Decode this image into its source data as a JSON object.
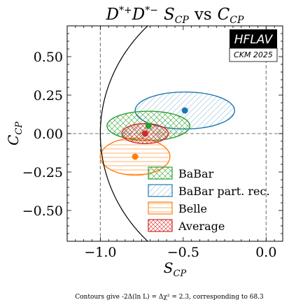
{
  "chart_data": {
    "type": "scatter",
    "title": "D*+D*− S_CP vs C_CP",
    "xlabel": "S_CP",
    "ylabel": "C_CP",
    "xlim": [
      -1.2,
      0.1
    ],
    "ylim": [
      -0.7,
      0.7
    ],
    "x_ticks": [
      -1.0,
      -0.5,
      0.0
    ],
    "x_tick_labels": [
      "−1.0",
      "−0.5",
      "0.0"
    ],
    "y_ticks": [
      -0.5,
      -0.25,
      0.0,
      0.25,
      0.5
    ],
    "y_tick_labels": [
      "−0.50",
      "−0.25",
      "0.00",
      "0.25",
      "0.50"
    ],
    "reference_lines": {
      "x": [
        -1.0,
        0.0
      ],
      "y": [
        0.0
      ]
    },
    "physical_boundary": "S^2 + C^2 = 1",
    "grid": false,
    "legend_position": "bottom-center",
    "series": [
      {
        "name": "BaBar",
        "color": "#2ca02c",
        "hatch": "diagonal-cross",
        "center": [
          -0.71,
          0.05
        ],
        "semi_axes": [
          0.25,
          0.095
        ],
        "rotation_deg": 0
      },
      {
        "name": "BaBar part. rec.",
        "color": "#1f77b4",
        "hatch": "diagonal",
        "center": [
          -0.49,
          0.15
        ],
        "semi_axes": [
          0.3,
          0.12
        ],
        "rotation_deg": 0
      },
      {
        "name": "Belle",
        "color": "#ff7f0e",
        "hatch": "horizontal",
        "center": [
          -0.79,
          -0.15
        ],
        "semi_axes": [
          0.21,
          0.12
        ],
        "rotation_deg": 0
      },
      {
        "name": "Average",
        "color": "#d62728",
        "hatch": "cross",
        "center": [
          -0.73,
          0.0
        ],
        "semi_axes": [
          0.14,
          0.065
        ],
        "rotation_deg": 0
      }
    ]
  },
  "logo": {
    "brand": "HFLAV",
    "edition": "CKM 2025"
  },
  "footer": {
    "note": "Contours give -2Δ(ln L) = Δχ² = 2.3, corresponding to 68.3"
  }
}
